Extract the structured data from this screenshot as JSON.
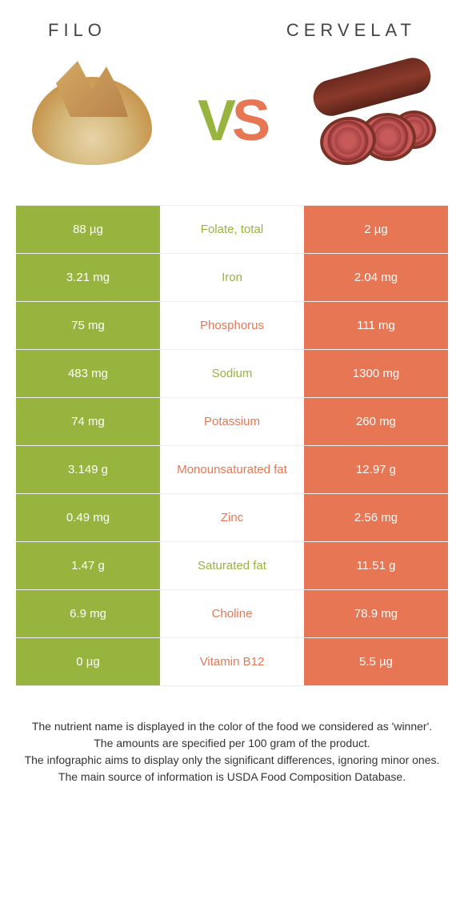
{
  "foods": {
    "left": {
      "name": "FILO",
      "color": "#96b43e"
    },
    "right": {
      "name": "CERVELAT",
      "color": "#e77655"
    }
  },
  "vs": {
    "v": "V",
    "s": "S"
  },
  "rows": [
    {
      "left": "88 µg",
      "label": "Folate, total",
      "winner": "left",
      "right": "2 µg"
    },
    {
      "left": "3.21 mg",
      "label": "Iron",
      "winner": "left",
      "right": "2.04 mg"
    },
    {
      "left": "75 mg",
      "label": "Phosphorus",
      "winner": "right",
      "right": "111 mg"
    },
    {
      "left": "483 mg",
      "label": "Sodium",
      "winner": "left",
      "right": "1300 mg"
    },
    {
      "left": "74 mg",
      "label": "Potassium",
      "winner": "right",
      "right": "260 mg"
    },
    {
      "left": "3.149 g",
      "label": "Monounsaturated fat",
      "winner": "right",
      "right": "12.97 g"
    },
    {
      "left": "0.49 mg",
      "label": "Zinc",
      "winner": "right",
      "right": "2.56 mg"
    },
    {
      "left": "1.47 g",
      "label": "Saturated fat",
      "winner": "left",
      "right": "11.51 g"
    },
    {
      "left": "6.9 mg",
      "label": "Choline",
      "winner": "right",
      "right": "78.9 mg"
    },
    {
      "left": "0 µg",
      "label": "Vitamin B12",
      "winner": "right",
      "right": "5.5 µg"
    }
  ],
  "footer": {
    "l1": "The nutrient name is displayed in the color of the food we considered as 'winner'.",
    "l2": "The amounts are specified per 100 gram of the product.",
    "l3": "The infographic aims to display only the significant differences, ignoring minor ones.",
    "l4": "The main source of information is USDA Food Composition Database."
  }
}
